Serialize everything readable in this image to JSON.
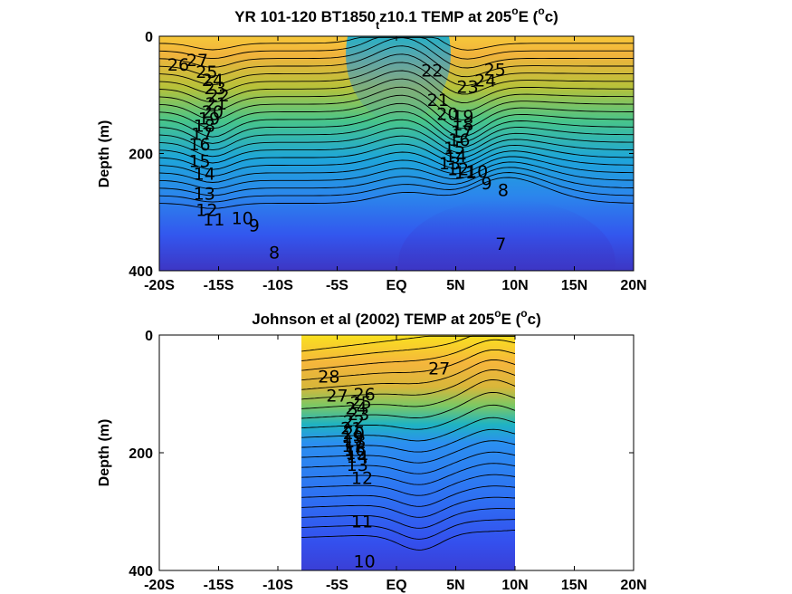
{
  "figure": {
    "colormap": [
      "#3e26a8",
      "#3352f0",
      "#2b7bf0",
      "#1ea6d9",
      "#2dc0a0",
      "#6cc96a",
      "#b6c23a",
      "#f0ba3a",
      "#fcd12e",
      "#f9fb0e"
    ]
  },
  "chart_data": [
    {
      "type": "contour",
      "title": "YR 101-120 BT1850",
      "title_sub": "t",
      "title_rest": "z10.1 TEMP at 205",
      "title_sup1": "o",
      "title_after_sup1": "E (",
      "title_sup2": "o",
      "title_end": "c)",
      "xlabel": "",
      "ylabel": "Depth (m)",
      "xlim": [
        -20,
        20
      ],
      "ylim": [
        0,
        400
      ],
      "y_reversed": true,
      "x_ticks": [
        -20,
        -15,
        -10,
        -5,
        0,
        5,
        10,
        15,
        20
      ],
      "x_tick_labels": [
        "-20S",
        "-15S",
        "-10S",
        "-5S",
        "EQ",
        "5N",
        "10N",
        "15N",
        "20N"
      ],
      "y_ticks": [
        0,
        200,
        400
      ],
      "y_tick_labels": [
        "0",
        "200",
        "400"
      ],
      "data_extent": [
        -20,
        20
      ],
      "color_range": [
        6,
        28
      ],
      "contour_labels": [
        {
          "text": "26",
          "x": -18.4,
          "depth": 48
        },
        {
          "text": "27",
          "x": -16.8,
          "depth": 40
        },
        {
          "text": "25",
          "x": -16.0,
          "depth": 60
        },
        {
          "text": "24",
          "x": -15.5,
          "depth": 74
        },
        {
          "text": "23",
          "x": -15.3,
          "depth": 88
        },
        {
          "text": "22",
          "x": -15.0,
          "depth": 100
        },
        {
          "text": "21",
          "x": -15.2,
          "depth": 114
        },
        {
          "text": "20",
          "x": -15.5,
          "depth": 128
        },
        {
          "text": "19",
          "x": -15.8,
          "depth": 140
        },
        {
          "text": "18",
          "x": -16.2,
          "depth": 152
        },
        {
          "text": "17",
          "x": -16.4,
          "depth": 166
        },
        {
          "text": "16",
          "x": -16.6,
          "depth": 184
        },
        {
          "text": "15",
          "x": -16.6,
          "depth": 212
        },
        {
          "text": "14",
          "x": -16.2,
          "depth": 234
        },
        {
          "text": "13",
          "x": -16.2,
          "depth": 268
        },
        {
          "text": "12",
          "x": -16.0,
          "depth": 296
        },
        {
          "text": "11",
          "x": -15.4,
          "depth": 312
        },
        {
          "text": "10",
          "x": -13.0,
          "depth": 310
        },
        {
          "text": "9",
          "x": -12.0,
          "depth": 322
        },
        {
          "text": "8",
          "x": -10.3,
          "depth": 368
        },
        {
          "text": "22",
          "x": 3.0,
          "depth": 58
        },
        {
          "text": "25",
          "x": 8.3,
          "depth": 56
        },
        {
          "text": "24",
          "x": 7.5,
          "depth": 75
        },
        {
          "text": "23",
          "x": 6.0,
          "depth": 86
        },
        {
          "text": "21",
          "x": 3.5,
          "depth": 108
        },
        {
          "text": "20",
          "x": 4.3,
          "depth": 132
        },
        {
          "text": "19",
          "x": 5.6,
          "depth": 136
        },
        {
          "text": "18",
          "x": 5.6,
          "depth": 150
        },
        {
          "text": "17",
          "x": 5.5,
          "depth": 162
        },
        {
          "text": "16",
          "x": 5.3,
          "depth": 176
        },
        {
          "text": "15",
          "x": 4.9,
          "depth": 190
        },
        {
          "text": "14",
          "x": 5.0,
          "depth": 204
        },
        {
          "text": "13",
          "x": 4.5,
          "depth": 216
        },
        {
          "text": "12",
          "x": 5.2,
          "depth": 226
        },
        {
          "text": "11",
          "x": 5.8,
          "depth": 232
        },
        {
          "text": "10",
          "x": 6.8,
          "depth": 230
        },
        {
          "text": "9",
          "x": 7.6,
          "depth": 250
        },
        {
          "text": "8",
          "x": 9.0,
          "depth": 262
        },
        {
          "text": "7",
          "x": 8.8,
          "depth": 354
        }
      ]
    },
    {
      "type": "contour",
      "title": "Johnson et al (2002) TEMP at 205",
      "title_sup1": "o",
      "title_after_sup1": "E (",
      "title_sup2": "o",
      "title_end": "c)",
      "xlabel": "",
      "ylabel": "Depth (m)",
      "xlim": [
        -20,
        20
      ],
      "ylim": [
        0,
        400
      ],
      "y_reversed": true,
      "x_ticks": [
        -20,
        -15,
        -10,
        -5,
        0,
        5,
        10,
        15,
        20
      ],
      "x_tick_labels": [
        "-20S",
        "-15S",
        "-10S",
        "-5S",
        "EQ",
        "5N",
        "10N",
        "15N",
        "20N"
      ],
      "y_ticks": [
        0,
        200,
        400
      ],
      "y_tick_labels": [
        "0",
        "200",
        "400"
      ],
      "data_extent": [
        -8,
        10
      ],
      "color_range": [
        6,
        28
      ],
      "contour_labels": [
        {
          "text": "28",
          "x": -5.7,
          "depth": 70
        },
        {
          "text": "27",
          "x": 3.6,
          "depth": 56
        },
        {
          "text": "27",
          "x": -5.0,
          "depth": 102
        },
        {
          "text": "26",
          "x": -2.7,
          "depth": 100
        },
        {
          "text": "25",
          "x": -3.0,
          "depth": 114
        },
        {
          "text": "24",
          "x": -3.4,
          "depth": 124
        },
        {
          "text": "23",
          "x": -3.2,
          "depth": 134
        },
        {
          "text": "22",
          "x": -3.6,
          "depth": 146
        },
        {
          "text": "21",
          "x": -3.8,
          "depth": 158
        },
        {
          "text": "20",
          "x": -3.6,
          "depth": 166
        },
        {
          "text": "19",
          "x": -3.7,
          "depth": 172
        },
        {
          "text": "18",
          "x": -3.5,
          "depth": 180
        },
        {
          "text": "17",
          "x": -3.7,
          "depth": 188
        },
        {
          "text": "16",
          "x": -3.5,
          "depth": 194
        },
        {
          "text": "15",
          "x": -3.4,
          "depth": 200
        },
        {
          "text": "14",
          "x": -3.3,
          "depth": 206
        },
        {
          "text": "13",
          "x": -3.3,
          "depth": 220
        },
        {
          "text": "12",
          "x": -2.9,
          "depth": 242
        },
        {
          "text": "11",
          "x": -2.9,
          "depth": 316
        },
        {
          "text": "10",
          "x": -2.7,
          "depth": 384
        }
      ]
    }
  ]
}
